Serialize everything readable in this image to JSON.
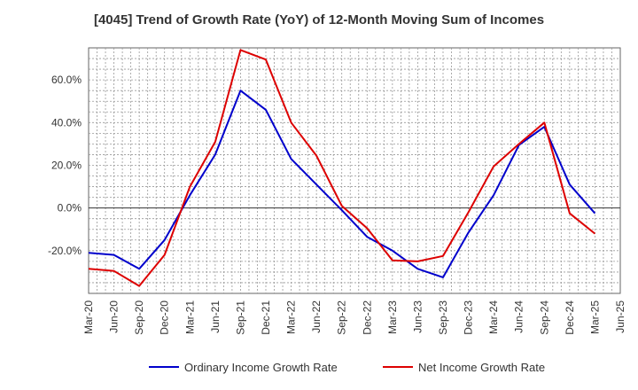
{
  "chart_data": {
    "type": "line",
    "title": "[4045]  Trend of Growth Rate (YoY) of 12-Month Moving Sum of Incomes",
    "xlabel": "",
    "ylabel": "",
    "ylim": [
      -40,
      75
    ],
    "y_ticks": [
      -20,
      0,
      20,
      40,
      60
    ],
    "y_tick_labels": [
      "-20.0%",
      "0.0%",
      "20.0%",
      "40.0%",
      "60.0%"
    ],
    "x_tick_labels": [
      "Mar-20",
      "Jun-20",
      "Sep-20",
      "Dec-20",
      "Mar-21",
      "Jun-21",
      "Sep-21",
      "Dec-21",
      "Mar-22",
      "Jun-22",
      "Sep-22",
      "Dec-22",
      "Mar-23",
      "Jun-23",
      "Sep-23",
      "Dec-23",
      "Mar-24",
      "Jun-24",
      "Sep-24",
      "Dec-24",
      "Mar-25",
      "Jun-25"
    ],
    "grid": true,
    "legend_position": "bottom",
    "series": [
      {
        "name": "Ordinary Income Growth Rate",
        "color": "#0000cc",
        "x": [
          "Mar-20",
          "Jun-20",
          "Sep-20",
          "Dec-20",
          "Mar-21",
          "Jun-21",
          "Sep-21",
          "Dec-21",
          "Mar-22",
          "Jun-22",
          "Sep-22",
          "Dec-22",
          "Mar-23",
          "Jun-23",
          "Sep-23",
          "Dec-23",
          "Mar-24",
          "Jun-24",
          "Sep-24",
          "Dec-24",
          "Mar-25"
        ],
        "values": [
          -21.0,
          -22.0,
          -28.5,
          -15.0,
          6.0,
          25.0,
          55.0,
          46.0,
          23.0,
          11.0,
          -1.0,
          -13.5,
          -20.0,
          -28.5,
          -32.5,
          -11.5,
          6.0,
          29.5,
          38.0,
          11.0,
          -2.5
        ]
      },
      {
        "name": "Net Income Growth Rate",
        "color": "#dd0000",
        "x": [
          "Mar-20",
          "Jun-20",
          "Sep-20",
          "Dec-20",
          "Mar-21",
          "Jun-21",
          "Sep-21",
          "Dec-21",
          "Mar-22",
          "Jun-22",
          "Sep-22",
          "Dec-22",
          "Mar-23",
          "Jun-23",
          "Sep-23",
          "Dec-23",
          "Mar-24",
          "Jun-24",
          "Sep-24",
          "Dec-24",
          "Mar-25"
        ],
        "values": [
          -28.5,
          -29.5,
          -36.5,
          -22.0,
          10.0,
          31.0,
          74.0,
          69.5,
          40.0,
          24.5,
          1.0,
          -9.5,
          -24.5,
          -25.0,
          -22.5,
          -2.0,
          19.5,
          30.0,
          40.0,
          -2.5,
          -12.0
        ]
      }
    ]
  }
}
